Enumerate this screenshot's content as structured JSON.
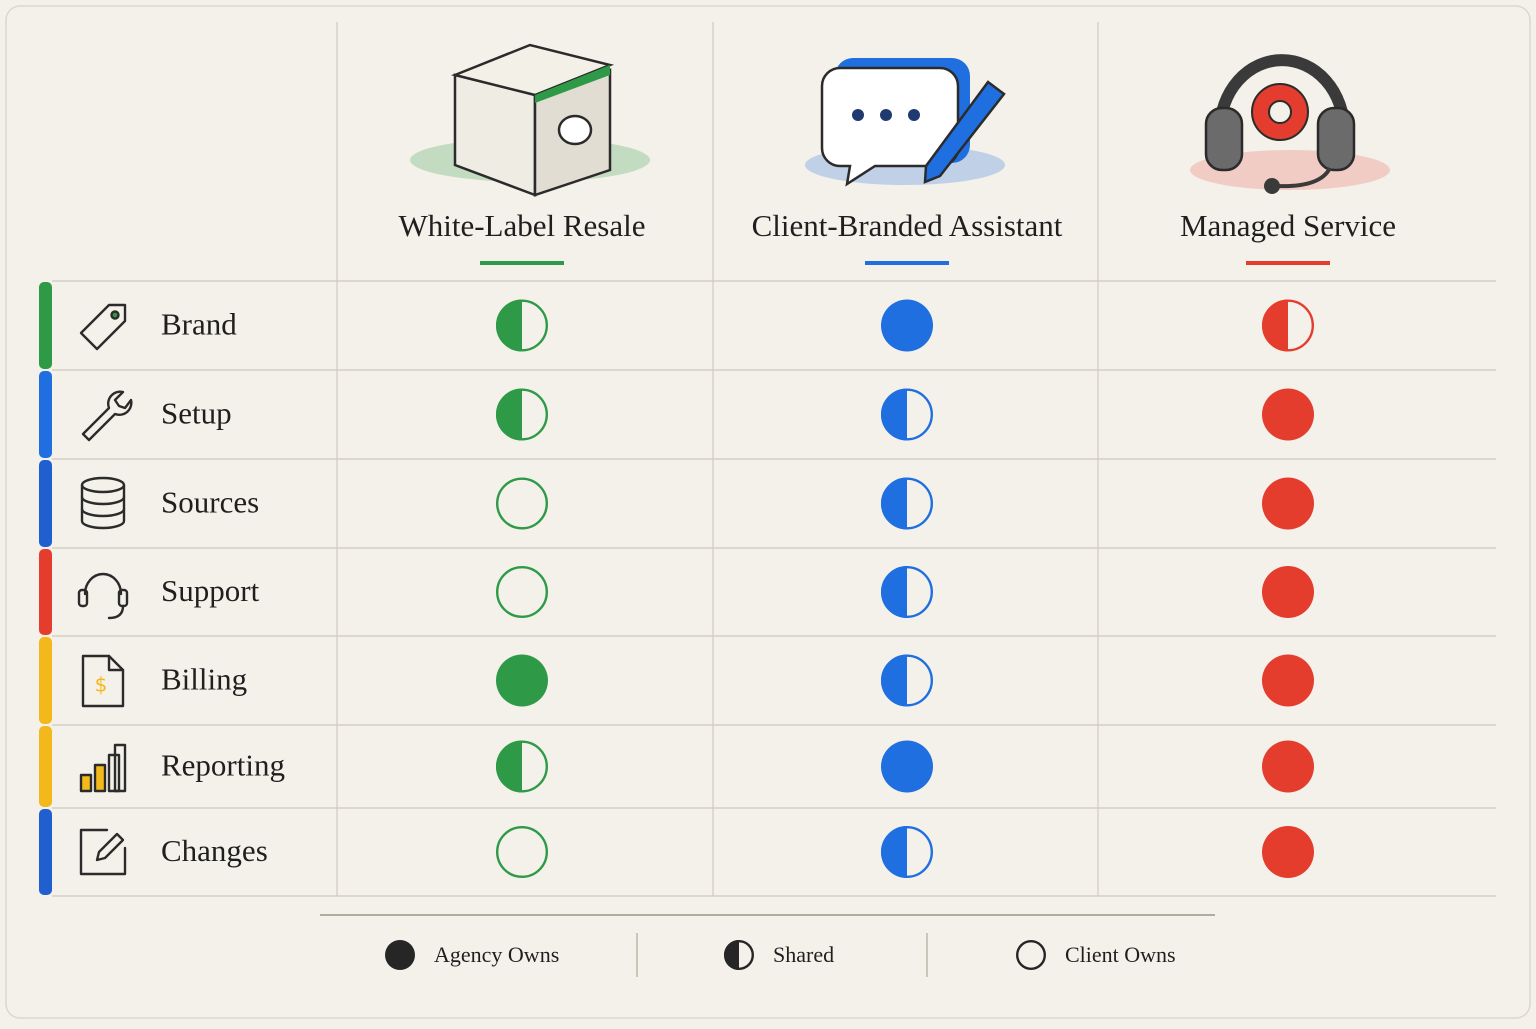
{
  "columns": [
    {
      "title": "White-Label Resale",
      "color": "#2e9a48"
    },
    {
      "title": "Client-Branded Assistant",
      "color": "#1f6fe0"
    },
    {
      "title": "Managed Service",
      "color": "#e43d2e"
    }
  ],
  "rows": [
    {
      "label": "Brand",
      "color": "#2e9a48",
      "cells": [
        "shared",
        "agency",
        "shared"
      ]
    },
    {
      "label": "Setup",
      "color": "#1f6fe0",
      "cells": [
        "shared",
        "shared",
        "agency"
      ]
    },
    {
      "label": "Sources",
      "color": "#1f5fd0",
      "cells": [
        "client",
        "shared",
        "agency"
      ]
    },
    {
      "label": "Support",
      "color": "#e43d2e",
      "cells": [
        "client",
        "shared",
        "agency"
      ]
    },
    {
      "label": "Billing",
      "color": "#f2b81c",
      "cells": [
        "agency",
        "shared",
        "agency"
      ]
    },
    {
      "label": "Reporting",
      "color": "#f2b81c",
      "cells": [
        "shared",
        "agency",
        "agency"
      ]
    },
    {
      "label": "Changes",
      "color": "#1f5fd0",
      "cells": [
        "client",
        "shared",
        "agency"
      ]
    }
  ],
  "legend": [
    {
      "label": "Agency Owns",
      "state": "agency"
    },
    {
      "label": "Shared",
      "state": "shared"
    },
    {
      "label": "Client Owns",
      "state": "client"
    }
  ]
}
